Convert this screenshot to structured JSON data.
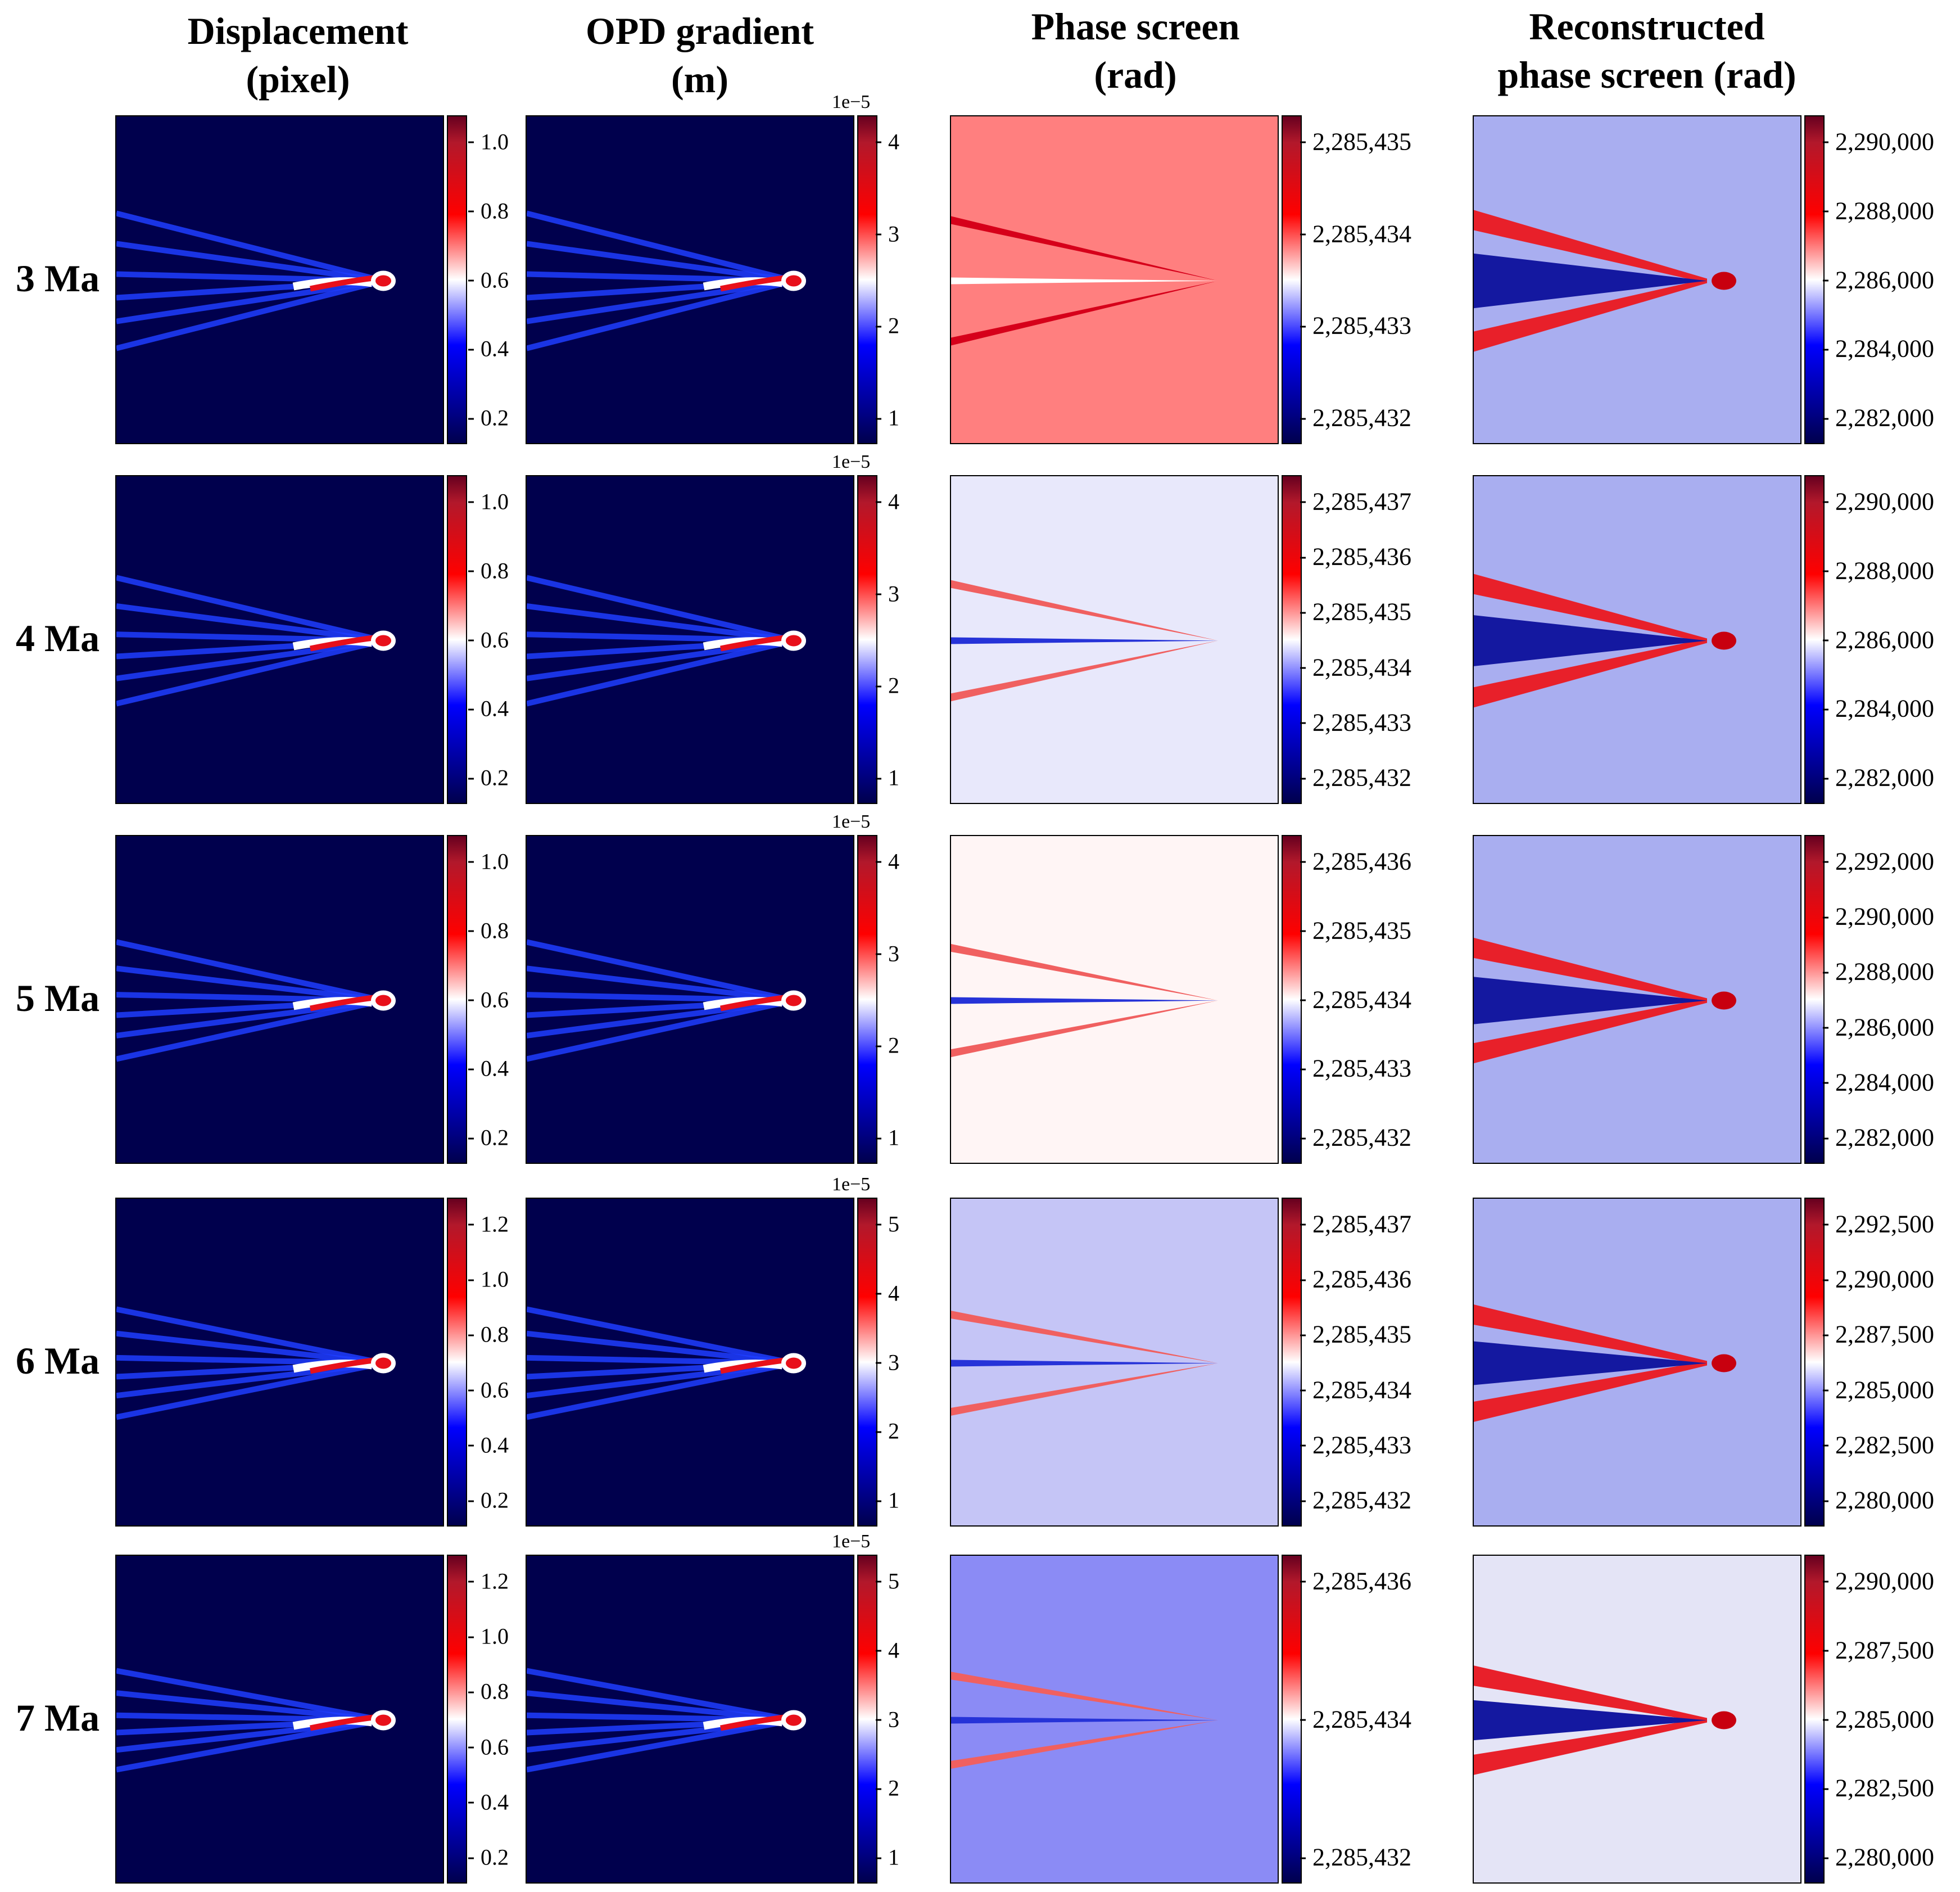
{
  "column_headers": [
    {
      "line1": "Displacement",
      "line2": "(pixel)"
    },
    {
      "line1": "OPD gradient",
      "line2": "(m)"
    },
    {
      "line1": "Phase screen",
      "line2": "(rad)"
    },
    {
      "line1": "Reconstructed",
      "line2": "phase screen (rad)"
    }
  ],
  "rows": [
    {
      "label": "3 Ma",
      "displacement_ticks": [
        "1.0",
        "0.8",
        "0.6",
        "0.4",
        "0.2"
      ],
      "opd_offset": "1e−5",
      "opd_ticks": [
        "4",
        "3",
        "2",
        "1"
      ],
      "phase_ticks": [
        "2,285,435",
        "2,285,434",
        "2,285,433",
        "2,285,432"
      ],
      "recon_ticks": [
        "2,290,000",
        "2,288,000",
        "2,286,000",
        "2,284,000",
        "2,282,000"
      ],
      "phase_bg": "#ff7f7f"
    },
    {
      "label": "4 Ma",
      "displacement_ticks": [
        "1.0",
        "0.8",
        "0.6",
        "0.4",
        "0.2"
      ],
      "opd_offset": "1e−5",
      "opd_ticks": [
        "4",
        "3",
        "2",
        "1"
      ],
      "phase_ticks": [
        "2,285,437",
        "2,285,436",
        "2,285,435",
        "2,285,434",
        "2,285,433",
        "2,285,432"
      ],
      "recon_ticks": [
        "2,290,000",
        "2,288,000",
        "2,286,000",
        "2,284,000",
        "2,282,000"
      ],
      "phase_bg": "#e8e8fb"
    },
    {
      "label": "5 Ma",
      "displacement_ticks": [
        "1.0",
        "0.8",
        "0.6",
        "0.4",
        "0.2"
      ],
      "opd_offset": "1e−5",
      "opd_ticks": [
        "4",
        "3",
        "2",
        "1"
      ],
      "phase_ticks": [
        "2,285,436",
        "2,285,435",
        "2,285,434",
        "2,285,433",
        "2,285,432"
      ],
      "recon_ticks": [
        "2,292,000",
        "2,290,000",
        "2,288,000",
        "2,286,000",
        "2,284,000",
        "2,282,000"
      ],
      "phase_bg": "#fff5f5"
    },
    {
      "label": "6 Ma",
      "displacement_ticks": [
        "1.2",
        "1.0",
        "0.8",
        "0.6",
        "0.4",
        "0.2"
      ],
      "opd_offset": "1e−5",
      "opd_ticks": [
        "5",
        "4",
        "3",
        "2",
        "1"
      ],
      "phase_ticks": [
        "2,285,437",
        "2,285,436",
        "2,285,435",
        "2,285,434",
        "2,285,433",
        "2,285,432"
      ],
      "recon_ticks": [
        "2,292,500",
        "2,290,000",
        "2,287,500",
        "2,285,000",
        "2,282,500",
        "2,280,000"
      ],
      "phase_bg": "#c5c5f6"
    },
    {
      "label": "7 Ma",
      "displacement_ticks": [
        "1.2",
        "1.0",
        "0.8",
        "0.6",
        "0.4",
        "0.2"
      ],
      "opd_offset": "1e−5",
      "opd_ticks": [
        "5",
        "4",
        "3",
        "2",
        "1"
      ],
      "phase_ticks": [
        "2,285,436",
        "2,285,434",
        "2,285,432"
      ],
      "recon_ticks": [
        "2,290,000",
        "2,287,500",
        "2,285,000",
        "2,282,500",
        "2,280,000"
      ],
      "phase_bg": "#8b8bf5"
    }
  ],
  "colors": {
    "dark_navy": "#00004d",
    "line_blue": "#1f3dff",
    "hot_red": "#e8101a",
    "recon_bg": "#a9aef0"
  }
}
